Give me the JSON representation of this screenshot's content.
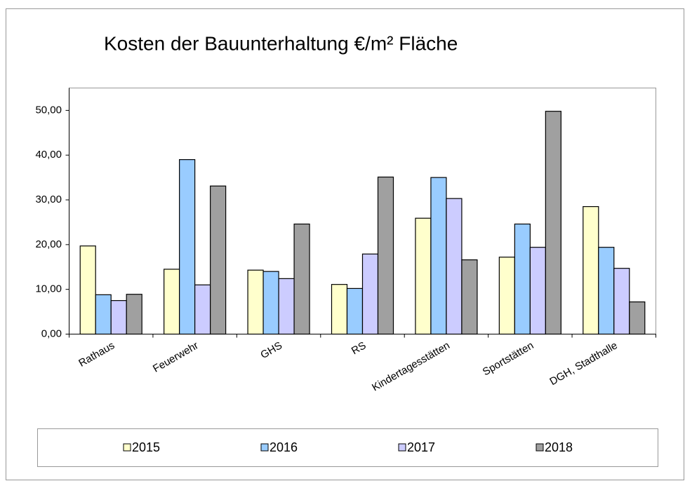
{
  "chart_data": {
    "type": "bar",
    "title": "Kosten der Bauunterhaltung €/m² Fläche",
    "categories": [
      "Rathaus",
      "Feuerwehr",
      "GHS",
      "RS",
      "Kindertagesstätten",
      "Sportstätten",
      "DGH, Stadthalle"
    ],
    "series": [
      {
        "name": "2015",
        "color": "#ffffcc",
        "values": [
          19.7,
          14.5,
          14.3,
          11.1,
          25.9,
          17.2,
          28.5
        ]
      },
      {
        "name": "2016",
        "color": "#99ccff",
        "values": [
          8.8,
          39.0,
          14.0,
          10.2,
          35.0,
          24.6,
          19.4
        ]
      },
      {
        "name": "2017",
        "color": "#ccccff",
        "values": [
          7.5,
          11.0,
          12.4,
          17.9,
          30.3,
          19.4,
          14.7
        ]
      },
      {
        "name": "2018",
        "color": "#a0a0a0",
        "values": [
          8.9,
          33.1,
          24.6,
          35.1,
          16.6,
          49.8,
          7.2
        ]
      }
    ],
    "ylim": [
      0,
      55
    ],
    "yticks": [
      {
        "value": 0,
        "label": "0,00"
      },
      {
        "value": 10,
        "label": "10,00"
      },
      {
        "value": 20,
        "label": "20,00"
      },
      {
        "value": 30,
        "label": "30,00"
      },
      {
        "value": 40,
        "label": "40,00"
      },
      {
        "value": 50,
        "label": "50,00"
      }
    ],
    "grid": false,
    "legend": "bottom"
  }
}
